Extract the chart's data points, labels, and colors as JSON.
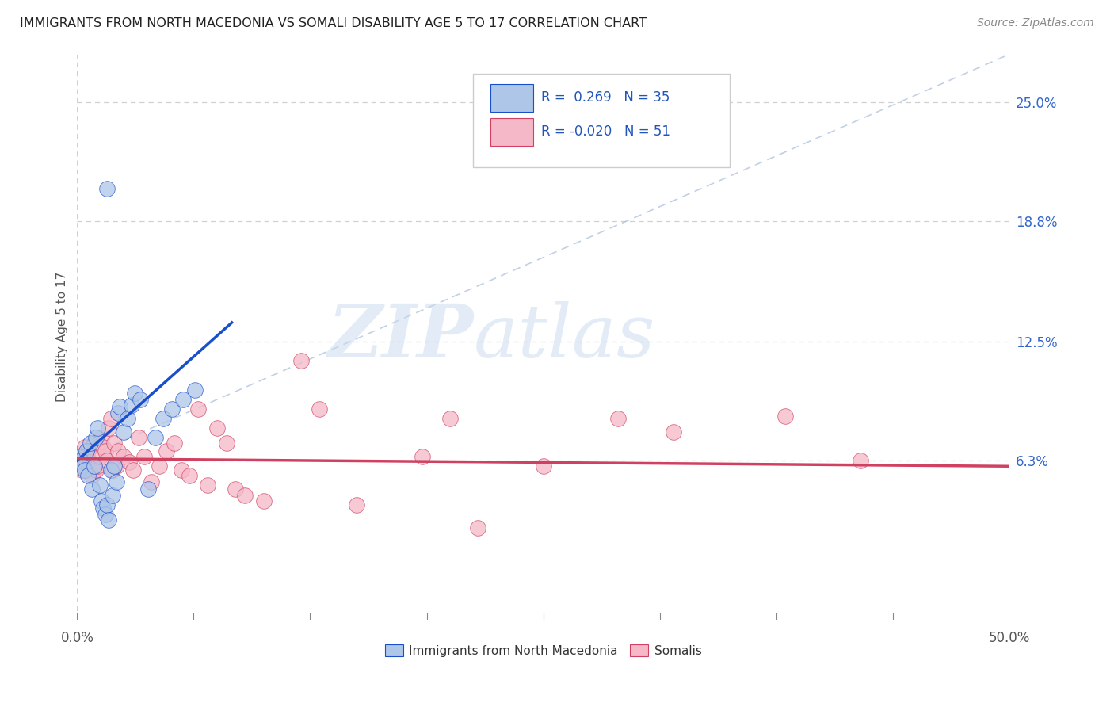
{
  "title": "IMMIGRANTS FROM NORTH MACEDONIA VS SOMALI DISABILITY AGE 5 TO 17 CORRELATION CHART",
  "source": "Source: ZipAtlas.com",
  "ylabel": "Disability Age 5 to 17",
  "xlim": [
    0.0,
    0.5
  ],
  "ylim": [
    -0.02,
    0.275
  ],
  "xtick_left_label": "0.0%",
  "xtick_right_label": "50.0%",
  "ytick_positions": [
    0.063,
    0.125,
    0.188,
    0.25
  ],
  "ytick_labels": [
    "6.3%",
    "12.5%",
    "18.8%",
    "25.0%"
  ],
  "r_mac": 0.269,
  "n_mac": 35,
  "r_som": -0.02,
  "n_som": 51,
  "color_mac": "#aec6e8",
  "color_som": "#f4b8c8",
  "trend_color_mac": "#1a4fcc",
  "trend_color_som": "#d04060",
  "ref_line_color": "#a0b8d8",
  "grid_color": "#d0d0d0",
  "bg_color": "#ffffff",
  "mac_x": [
    0.001,
    0.002,
    0.003,
    0.004,
    0.005,
    0.006,
    0.007,
    0.008,
    0.009,
    0.01,
    0.011,
    0.012,
    0.013,
    0.014,
    0.015,
    0.016,
    0.017,
    0.018,
    0.019,
    0.02,
    0.021,
    0.022,
    0.023,
    0.025,
    0.027,
    0.029,
    0.031,
    0.034,
    0.038,
    0.042,
    0.046,
    0.051,
    0.057,
    0.063,
    0.016
  ],
  "mac_y": [
    0.065,
    0.063,
    0.06,
    0.058,
    0.068,
    0.055,
    0.072,
    0.048,
    0.06,
    0.075,
    0.08,
    0.05,
    0.042,
    0.038,
    0.035,
    0.04,
    0.032,
    0.058,
    0.045,
    0.06,
    0.052,
    0.088,
    0.091,
    0.078,
    0.085,
    0.092,
    0.098,
    0.095,
    0.048,
    0.075,
    0.085,
    0.09,
    0.095,
    0.1,
    0.205
  ],
  "som_x": [
    0.001,
    0.002,
    0.003,
    0.004,
    0.005,
    0.006,
    0.007,
    0.008,
    0.009,
    0.01,
    0.011,
    0.012,
    0.013,
    0.014,
    0.015,
    0.016,
    0.017,
    0.018,
    0.019,
    0.02,
    0.021,
    0.022,
    0.025,
    0.028,
    0.03,
    0.033,
    0.036,
    0.04,
    0.044,
    0.048,
    0.052,
    0.056,
    0.06,
    0.065,
    0.07,
    0.075,
    0.08,
    0.085,
    0.09,
    0.1,
    0.12,
    0.13,
    0.15,
    0.185,
    0.2,
    0.215,
    0.25,
    0.29,
    0.32,
    0.38,
    0.42
  ],
  "som_y": [
    0.063,
    0.06,
    0.058,
    0.07,
    0.065,
    0.068,
    0.062,
    0.055,
    0.072,
    0.058,
    0.06,
    0.065,
    0.075,
    0.07,
    0.068,
    0.063,
    0.08,
    0.085,
    0.058,
    0.072,
    0.06,
    0.068,
    0.065,
    0.062,
    0.058,
    0.075,
    0.065,
    0.052,
    0.06,
    0.068,
    0.072,
    0.058,
    0.055,
    0.09,
    0.05,
    0.08,
    0.072,
    0.048,
    0.045,
    0.042,
    0.115,
    0.09,
    0.04,
    0.065,
    0.085,
    0.028,
    0.06,
    0.085,
    0.078,
    0.086,
    0.063
  ]
}
